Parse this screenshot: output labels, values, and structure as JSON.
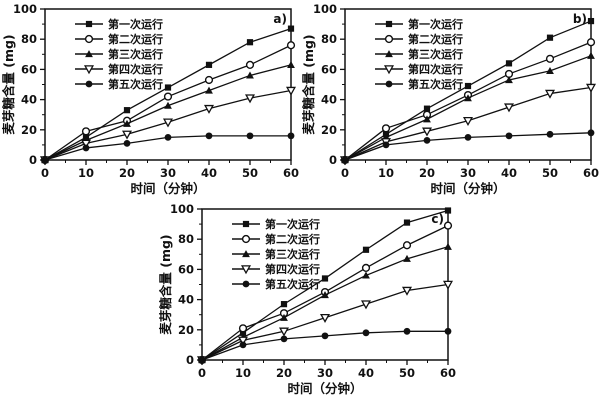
{
  "figure": {
    "background": "#ffffff",
    "ink_color": "#111111",
    "description_labels": [
      "a)",
      "b)",
      "c)"
    ]
  },
  "legend": {
    "position": "top-left-inside",
    "entries": [
      "第一次运行",
      "第二次运行",
      "第三次运行",
      "第四次运行",
      "第五次运行"
    ],
    "marker_shapes": [
      "square-filled",
      "circle-open",
      "triangle-filled",
      "triangle-down-open",
      "circle-filled"
    ]
  },
  "chart_data": [
    {
      "type": "line",
      "panel_label": "a)",
      "xlabel": "时间（分钟）",
      "ylabel": "麦芽糖含量 (mg)",
      "xlim": [
        0,
        60
      ],
      "ylim": [
        0,
        100
      ],
      "xticks": [
        0,
        10,
        20,
        30,
        40,
        50,
        60
      ],
      "yticks": [
        0,
        20,
        40,
        60,
        80,
        100
      ],
      "x_minor_step": 5,
      "y_minor_step": 10,
      "grid": false,
      "legend_position": "top-left",
      "x": [
        0,
        10,
        20,
        30,
        40,
        50,
        60
      ],
      "series": [
        {
          "name": "第一次运行",
          "marker": "square-filled",
          "values": [
            0,
            15,
            33,
            48,
            63,
            78,
            87
          ]
        },
        {
          "name": "第二次运行",
          "marker": "circle-open",
          "values": [
            0,
            19,
            26,
            42,
            53,
            63,
            76
          ]
        },
        {
          "name": "第三次运行",
          "marker": "triangle-filled",
          "values": [
            0,
            13,
            24,
            36,
            46,
            56,
            63
          ]
        },
        {
          "name": "第四次运行",
          "marker": "triangle-down-open",
          "values": [
            0,
            11,
            17,
            25,
            34,
            41,
            46
          ]
        },
        {
          "name": "第五次运行",
          "marker": "circle-filled",
          "values": [
            0,
            8,
            11,
            15,
            16,
            16,
            16
          ]
        }
      ]
    },
    {
      "type": "line",
      "panel_label": "b)",
      "xlabel": "时间（分钟）",
      "ylabel": "麦芽糖含量 (mg)",
      "xlim": [
        0,
        60
      ],
      "ylim": [
        0,
        100
      ],
      "xticks": [
        0,
        10,
        20,
        30,
        40,
        50,
        60
      ],
      "yticks": [
        0,
        20,
        40,
        60,
        80,
        100
      ],
      "x_minor_step": 5,
      "y_minor_step": 10,
      "grid": false,
      "legend_position": "top-left",
      "x": [
        0,
        10,
        20,
        30,
        40,
        50,
        60
      ],
      "series": [
        {
          "name": "第一次运行",
          "marker": "square-filled",
          "values": [
            0,
            17,
            34,
            49,
            64,
            81,
            92
          ]
        },
        {
          "name": "第二次运行",
          "marker": "circle-open",
          "values": [
            0,
            21,
            30,
            43,
            57,
            67,
            78
          ]
        },
        {
          "name": "第三次运行",
          "marker": "triangle-filled",
          "values": [
            0,
            15,
            27,
            41,
            53,
            59,
            69
          ]
        },
        {
          "name": "第四次运行",
          "marker": "triangle-down-open",
          "values": [
            0,
            12,
            19,
            26,
            35,
            44,
            48
          ]
        },
        {
          "name": "第五次运行",
          "marker": "circle-filled",
          "values": [
            0,
            10,
            13,
            15,
            16,
            17,
            18
          ]
        }
      ]
    },
    {
      "type": "line",
      "panel_label": "c)",
      "xlabel": "时间（分钟）",
      "ylabel": "麦芽糖含量 (mg)",
      "xlim": [
        0,
        60
      ],
      "ylim": [
        0,
        100
      ],
      "xticks": [
        0,
        10,
        20,
        30,
        40,
        50,
        60
      ],
      "yticks": [
        0,
        20,
        40,
        60,
        80,
        100
      ],
      "x_minor_step": 5,
      "y_minor_step": 10,
      "grid": false,
      "legend_position": "top-left",
      "x": [
        0,
        10,
        20,
        30,
        40,
        50,
        60
      ],
      "series": [
        {
          "name": "第一次运行",
          "marker": "square-filled",
          "values": [
            0,
            18,
            37,
            54,
            73,
            91,
            99
          ]
        },
        {
          "name": "第二次运行",
          "marker": "circle-open",
          "values": [
            0,
            21,
            31,
            45,
            61,
            76,
            89
          ]
        },
        {
          "name": "第三次运行",
          "marker": "triangle-filled",
          "values": [
            0,
            15,
            28,
            43,
            56,
            67,
            75
          ]
        },
        {
          "name": "第四次运行",
          "marker": "triangle-down-open",
          "values": [
            0,
            13,
            19,
            28,
            37,
            46,
            50
          ]
        },
        {
          "name": "第五次运行",
          "marker": "circle-filled",
          "values": [
            0,
            10,
            14,
            16,
            18,
            19,
            19
          ]
        }
      ]
    }
  ]
}
